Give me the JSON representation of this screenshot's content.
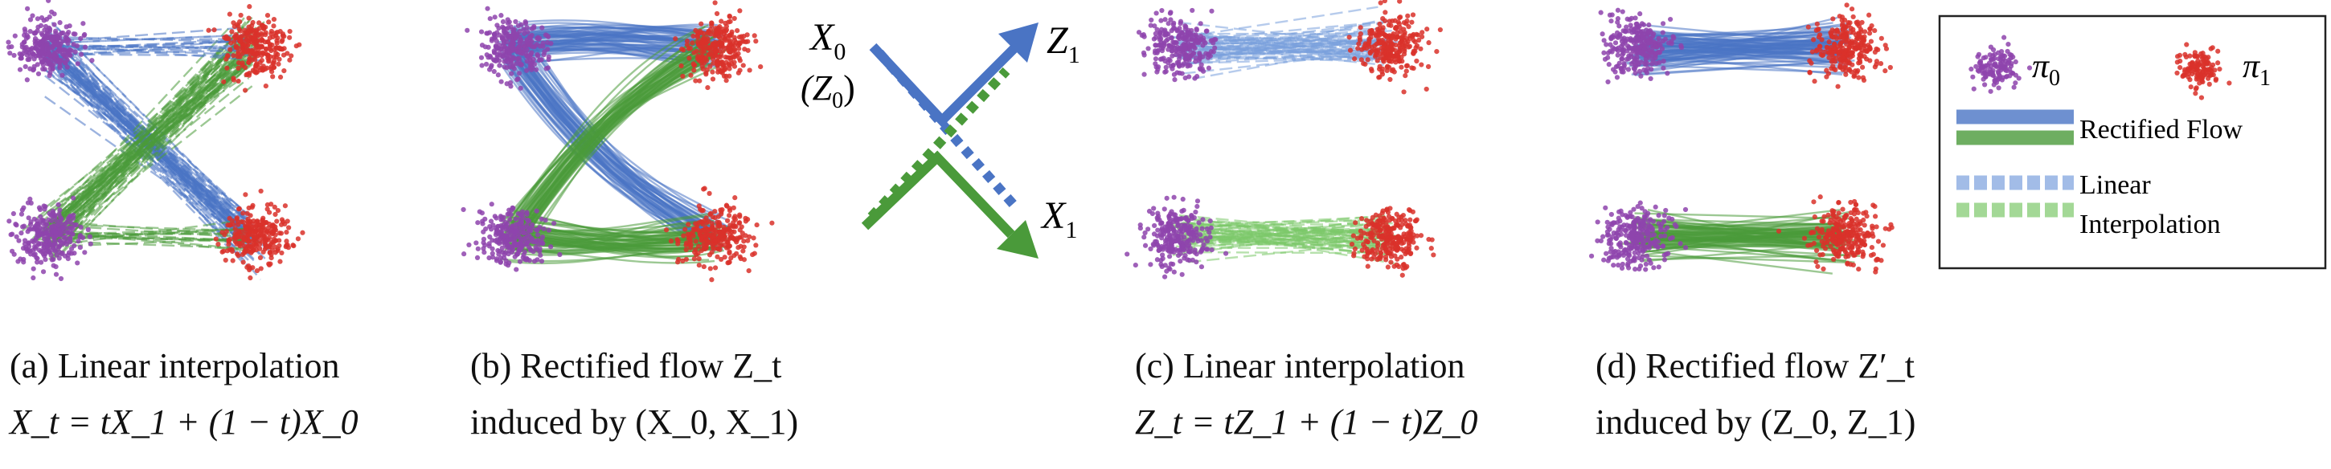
{
  "legend": {
    "pi0": "π",
    "pi0_sub": "0",
    "pi1": "π",
    "pi1_sub": "1",
    "rectified": "Rectified Flow",
    "linear_line1": "Linear",
    "linear_line2": "Interpolation"
  },
  "center": {
    "x0": "X",
    "x0_sub": "0",
    "z0": "(Z",
    "z0_sub": "0",
    "z0_close": ")",
    "z1": "Z",
    "z1_sub": "1",
    "x1": "X",
    "x1_sub": "1"
  },
  "captions": {
    "a": {
      "line1": "(a) Linear interpolation",
      "line2": "X_t = tX_1 + (1 − t)X_0"
    },
    "b": {
      "line1": "(b) Rectified flow Z_t",
      "line2": "induced by (X_0, X_1)"
    },
    "c": {
      "line1": "(c) Linear interpolation",
      "line2": "Z_t = tZ_1 + (1 − t)Z_0"
    },
    "d": {
      "line1": "(d) Rectified flow Z′_t",
      "line2": "induced by (Z_0, Z_1)"
    }
  },
  "colors": {
    "purple": "#8e44ad",
    "red": "#d9312a",
    "blue": "#4a74c4",
    "green": "#4a9a3a",
    "light_blue": "#7aa0dd",
    "light_green": "#7cc86a"
  }
}
